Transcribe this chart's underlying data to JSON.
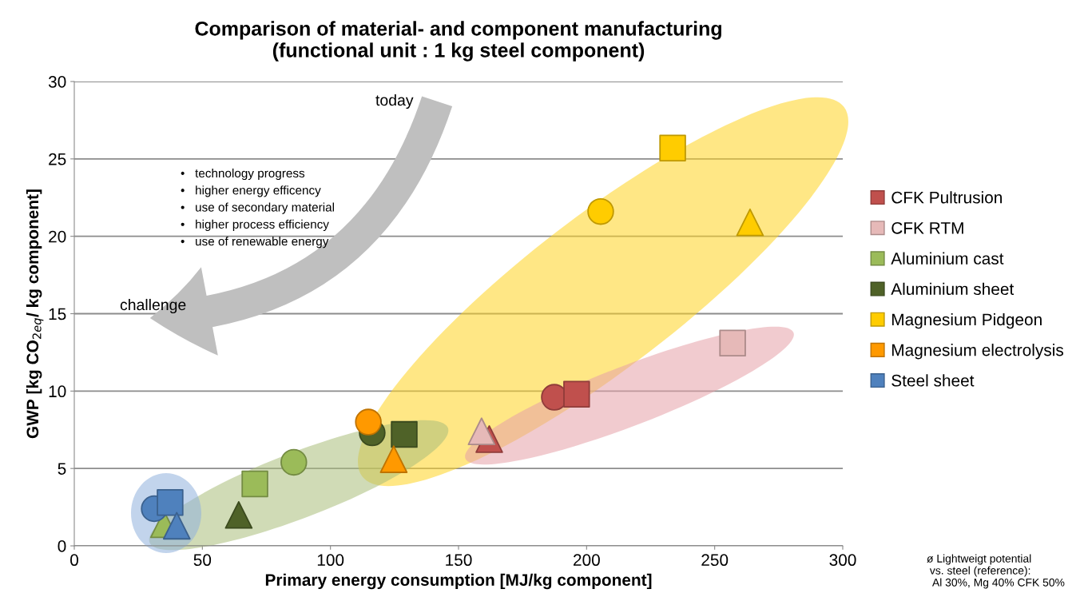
{
  "chart_data": {
    "type": "scatter",
    "title": "Comparison of material- and component manufacturing\n(functional unit : 1 kg steel component)",
    "xlabel": "Primary energy consumption [MJ/kg component]",
    "ylabel": "GWP [kg CO$_{2eq}$/ kg component]",
    "xlim": [
      0,
      300
    ],
    "xticks": [
      0,
      50,
      100,
      150,
      200,
      250,
      300
    ],
    "ylim": [
      0,
      30
    ],
    "yticks": [
      0,
      5,
      10,
      15,
      20,
      25,
      30
    ],
    "grid": "y",
    "legend": "right",
    "series": [
      {
        "name": "CFK Pultrusion",
        "color": "#c0504d",
        "marker": "circle",
        "x": [
          187.4
        ],
        "values": [
          9.6
        ]
      },
      {
        "color": "#c0504d",
        "marker": "square",
        "x": [
          196.1
        ],
        "values": [
          9.8
        ]
      },
      {
        "color": "#c0504d",
        "marker": "triangle",
        "x": [
          162
        ],
        "values": [
          6.9
        ]
      },
      {
        "name": "CFK RTM",
        "color": "#e6b9b8",
        "marker": "square",
        "x": [
          257
        ],
        "values": [
          13.1
        ]
      },
      {
        "color": "#e6b9b8",
        "marker": "triangle",
        "x": [
          159
        ],
        "values": [
          7.4
        ]
      },
      {
        "name": "Aluminium cast",
        "color": "#9bbb59",
        "marker": "circle",
        "x": [
          85.7
        ],
        "values": [
          5.4
        ]
      },
      {
        "color": "#9bbb59",
        "marker": "square",
        "x": [
          70.5
        ],
        "values": [
          4.0
        ]
      },
      {
        "color": "#9bbb59",
        "marker": "triangle",
        "x": [
          35
        ],
        "values": [
          1.4
        ]
      },
      {
        "name": "Aluminium sheet",
        "color": "#4f6228",
        "marker": "circle",
        "x": [
          116.3
        ],
        "values": [
          7.3
        ]
      },
      {
        "color": "#4f6228",
        "marker": "square",
        "x": [
          128.8
        ],
        "values": [
          7.2
        ]
      },
      {
        "color": "#4f6228",
        "marker": "triangle",
        "x": [
          64.2
        ],
        "values": [
          2.0
        ]
      },
      {
        "name": "Magnesium Pidgeon",
        "color": "#ffcc00",
        "marker": "circle",
        "x": [
          205.5
        ],
        "values": [
          21.6
        ]
      },
      {
        "color": "#ffcc00",
        "marker": "square",
        "x": [
          233.6
        ],
        "values": [
          25.7
        ]
      },
      {
        "color": "#ffcc00",
        "marker": "triangle",
        "x": [
          263.8
        ],
        "values": [
          20.9
        ]
      },
      {
        "name": "Magnesium electrolysis",
        "color": "#ff9900",
        "marker": "circle",
        "x": [
          114.8
        ],
        "values": [
          8.0
        ]
      },
      {
        "color": "#ff9900",
        "marker": "triangle",
        "x": [
          124.7
        ],
        "values": [
          5.6
        ]
      },
      {
        "name": "Steel sheet",
        "color": "#4f81bd",
        "marker": "circle",
        "x": [
          31.2
        ],
        "values": [
          2.4
        ]
      },
      {
        "color": "#4f81bd",
        "marker": "square",
        "x": [
          37.4
        ],
        "values": [
          2.8
        ]
      },
      {
        "color": "#4f81bd",
        "marker": "triangle",
        "x": [
          40
        ],
        "values": [
          1.3
        ]
      }
    ],
    "annotations": [
      "today",
      "challenge",
      "•   technology progress",
      "•   higher energy efficency",
      "•   use of secondary material",
      "•   higher process efficiency",
      "•   use of renewable energy",
      "ø Lightweigt potential\n vs. steel (reference):\n  Al 30%, Mg 40% CFK 50%"
    ]
  }
}
